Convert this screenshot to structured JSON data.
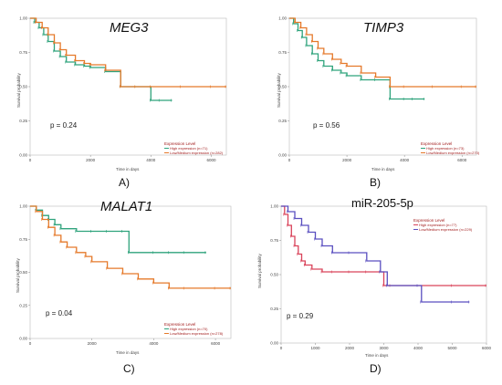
{
  "chart_data": [
    {
      "type": "line",
      "panel_label": "A)",
      "title": "MEG3",
      "pvalue": "p = 0.24",
      "xlabel": "Time in days",
      "ylabel": "Survival probability",
      "xlim": [
        0,
        6500
      ],
      "ylim": [
        0,
        1
      ],
      "xticks": [
        "0",
        "2000",
        "4000",
        "6000"
      ],
      "yticks": [
        "0.00",
        "0.25",
        "0.50",
        "0.75",
        "1.00"
      ],
      "legend_title": "Expression Level",
      "series": [
        {
          "name": "High expression (n=71)",
          "color": "#2fa37c",
          "x": [
            0,
            150,
            300,
            450,
            600,
            800,
            1000,
            1200,
            1500,
            1800,
            2000,
            2500,
            3000,
            3500,
            4000,
            4300,
            4700
          ],
          "y": [
            1.0,
            0.97,
            0.93,
            0.88,
            0.83,
            0.76,
            0.72,
            0.68,
            0.66,
            0.65,
            0.64,
            0.61,
            0.5,
            0.5,
            0.4,
            0.4,
            0.4
          ]
        },
        {
          "name": "Low/Medium expression (n=282)",
          "color": "#e5792a",
          "x": [
            0,
            200,
            400,
            600,
            800,
            1000,
            1200,
            1500,
            1800,
            2000,
            2500,
            3000,
            3500,
            4000,
            5000,
            6000,
            6500
          ],
          "y": [
            1.0,
            0.97,
            0.93,
            0.88,
            0.82,
            0.77,
            0.73,
            0.69,
            0.67,
            0.66,
            0.62,
            0.5,
            0.5,
            0.5,
            0.5,
            0.5,
            0.5
          ]
        }
      ]
    },
    {
      "type": "line",
      "panel_label": "B)",
      "title": "TIMP3",
      "pvalue": "p = 0.56",
      "xlabel": "Time in days",
      "ylabel": "Survival probability",
      "xlim": [
        0,
        6500
      ],
      "ylim": [
        0,
        1
      ],
      "xticks": [
        "0",
        "2000",
        "4000",
        "6000"
      ],
      "yticks": [
        "0.00",
        "0.25",
        "0.50",
        "0.75",
        "1.00"
      ],
      "legend_title": "Expression Level",
      "series": [
        {
          "name": "High expression (n=73)",
          "color": "#2fa37c",
          "x": [
            0,
            150,
            300,
            450,
            600,
            800,
            1000,
            1200,
            1500,
            1800,
            2000,
            2500,
            3000,
            3500,
            4000,
            4300,
            4700
          ],
          "y": [
            1.0,
            0.96,
            0.91,
            0.86,
            0.8,
            0.74,
            0.69,
            0.65,
            0.62,
            0.6,
            0.58,
            0.55,
            0.55,
            0.41,
            0.41,
            0.41,
            0.41
          ]
        },
        {
          "name": "Low/Medium expression (n=270)",
          "color": "#e5792a",
          "x": [
            0,
            200,
            400,
            600,
            800,
            1000,
            1200,
            1500,
            1800,
            2000,
            2500,
            3000,
            3500,
            4000,
            5000,
            6000,
            6500
          ],
          "y": [
            1.0,
            0.97,
            0.93,
            0.88,
            0.83,
            0.78,
            0.74,
            0.7,
            0.67,
            0.65,
            0.6,
            0.57,
            0.5,
            0.5,
            0.5,
            0.5,
            0.5
          ]
        }
      ]
    },
    {
      "type": "line",
      "panel_label": "C)",
      "title": "MALAT1",
      "pvalue": "p = 0.04",
      "xlabel": "Time in days",
      "ylabel": "Survival probability",
      "xlim": [
        0,
        6500
      ],
      "ylim": [
        0,
        1
      ],
      "xticks": [
        "0",
        "2000",
        "4000",
        "6000"
      ],
      "yticks": [
        "0.00",
        "0.25",
        "0.50",
        "0.75",
        "1.00"
      ],
      "legend_title": "Expression Level",
      "series": [
        {
          "name": "High expression (n=70)",
          "color": "#2fa37c",
          "x": [
            0,
            200,
            400,
            600,
            800,
            1000,
            1500,
            2000,
            2500,
            3000,
            3200,
            4000,
            4500,
            5000,
            5700
          ],
          "y": [
            1.0,
            0.97,
            0.93,
            0.9,
            0.86,
            0.83,
            0.81,
            0.81,
            0.81,
            0.81,
            0.65,
            0.65,
            0.65,
            0.65,
            0.65
          ]
        },
        {
          "name": "Low/Medium expression (n=278)",
          "color": "#e5792a",
          "x": [
            0,
            200,
            400,
            600,
            800,
            1000,
            1200,
            1500,
            1800,
            2000,
            2500,
            3000,
            3500,
            4000,
            4500,
            5000,
            6000,
            6500
          ],
          "y": [
            1.0,
            0.96,
            0.9,
            0.84,
            0.78,
            0.73,
            0.69,
            0.65,
            0.62,
            0.58,
            0.53,
            0.49,
            0.45,
            0.42,
            0.38,
            0.38,
            0.38,
            0.38
          ]
        }
      ]
    },
    {
      "type": "line",
      "panel_label": "D)",
      "title": "miR-205-5p",
      "pvalue": "p = 0.29",
      "xlabel": "Time in days",
      "ylabel": "Survival probability",
      "xlim": [
        0,
        6000
      ],
      "ylim": [
        0,
        1
      ],
      "xticks": [
        "0",
        "1000",
        "2000",
        "3000",
        "4000",
        "5000",
        "6000"
      ],
      "yticks": [
        "0.00",
        "0.25",
        "0.50",
        "0.75",
        "1.00"
      ],
      "legend_title": "Expression Level",
      "series": [
        {
          "name": "High expression (n=77)",
          "color": "#d9435a",
          "x": [
            0,
            100,
            200,
            300,
            400,
            500,
            600,
            700,
            900,
            1200,
            1500,
            2000,
            2500,
            2900,
            3000,
            3200,
            5000,
            6000
          ],
          "y": [
            1.0,
            0.94,
            0.86,
            0.78,
            0.71,
            0.65,
            0.6,
            0.57,
            0.54,
            0.52,
            0.52,
            0.52,
            0.52,
            0.52,
            0.42,
            0.42,
            0.42,
            0.42
          ]
        },
        {
          "name": "Low/Medium expression (n=229)",
          "color": "#5a4fc0",
          "x": [
            0,
            200,
            400,
            600,
            800,
            1000,
            1200,
            1500,
            2000,
            2500,
            2900,
            3100,
            4000,
            4100,
            5000,
            5500
          ],
          "y": [
            1.0,
            0.96,
            0.91,
            0.86,
            0.81,
            0.76,
            0.71,
            0.66,
            0.66,
            0.6,
            0.52,
            0.42,
            0.42,
            0.3,
            0.3,
            0.3
          ]
        }
      ]
    }
  ]
}
